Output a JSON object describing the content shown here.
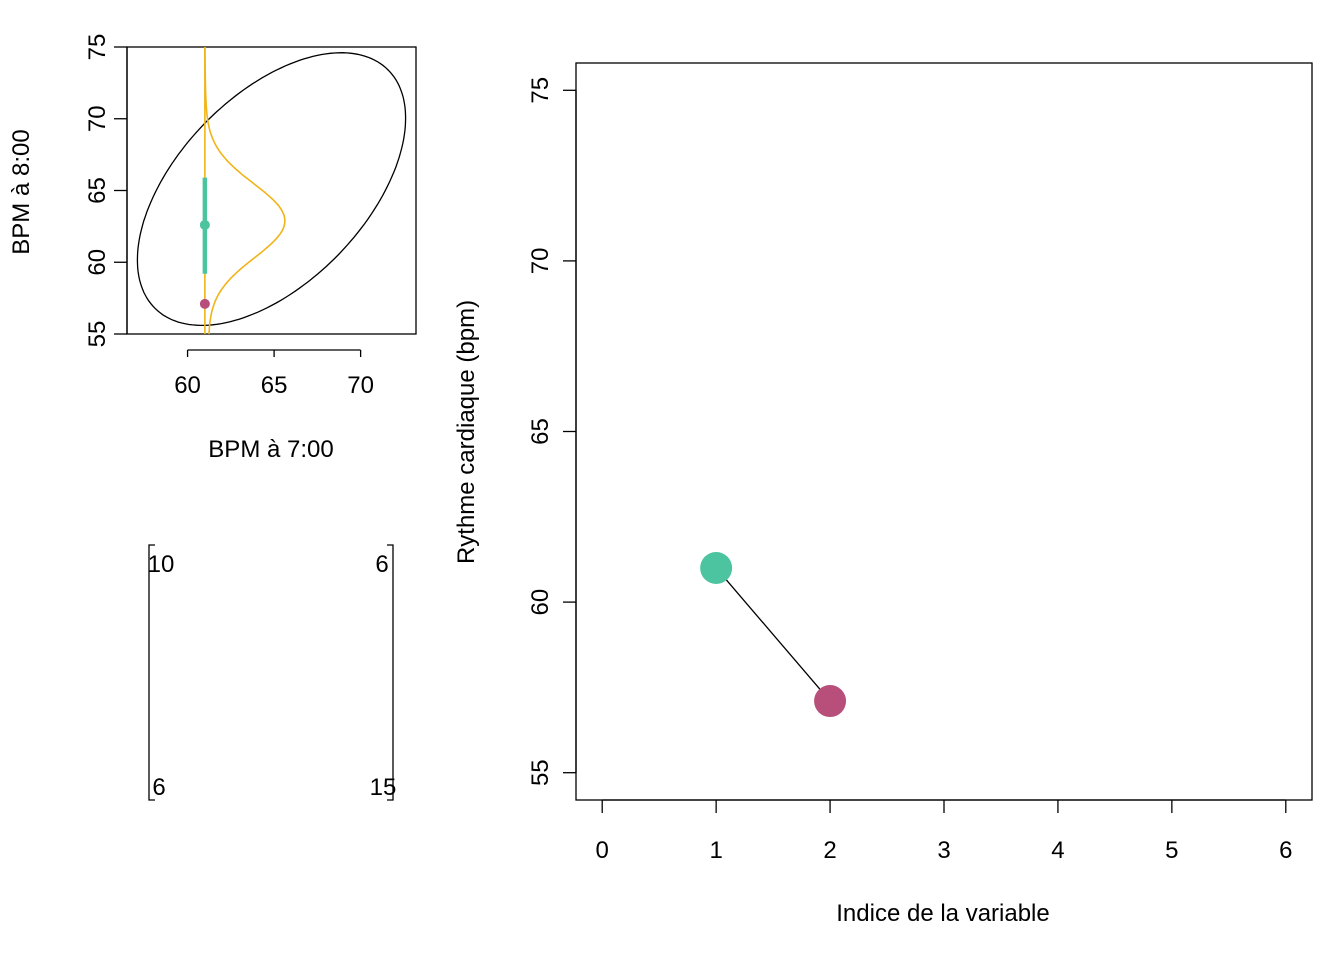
{
  "colors": {
    "teal": "#4DC4A0",
    "magenta": "#B84F7A",
    "orange": "#F0B418",
    "axis": "#000000"
  },
  "chart_data": [
    {
      "type": "scatter",
      "xlabel": "BPM à 7:00",
      "ylabel": "BPM à 8:00",
      "xlim": [
        56.5,
        73.2
      ],
      "ylim": [
        55,
        75
      ],
      "xticks": [
        "60",
        "65",
        "70"
      ],
      "yticks": [
        "55",
        "60",
        "65",
        "70",
        "75"
      ],
      "ellipse": {
        "x_range": [
          57.1,
          72.6
        ],
        "y_range": [
          55.6,
          74.6
        ]
      },
      "vertical_line_x": 61,
      "points": [
        {
          "x": 61,
          "y": 62.6,
          "color": "teal"
        },
        {
          "x": 61,
          "y": 57.1,
          "color": "magenta"
        }
      ],
      "interval": {
        "x": 61,
        "y_low": 59.2,
        "y_high": 65.9
      },
      "density_peak": {
        "x": 65.5,
        "y": 62.9
      }
    },
    {
      "type": "table",
      "col_labels": [
        {
          "top": "10",
          "bottom": "6"
        },
        {
          "top": "6",
          "bottom": "15"
        }
      ]
    },
    {
      "type": "line",
      "xlabel": "Indice de la variable",
      "ylabel": "Rythme cardiaque (bpm)",
      "xlim": [
        -0.23,
        6.23
      ],
      "ylim": [
        54.2,
        75.8
      ],
      "xticks": [
        "0",
        "1",
        "2",
        "3",
        "4",
        "5",
        "6"
      ],
      "yticks": [
        "55",
        "60",
        "65",
        "70",
        "75"
      ],
      "x": [
        1,
        2
      ],
      "values": [
        61,
        57.1
      ],
      "point_colors": [
        "teal",
        "magenta"
      ]
    }
  ]
}
